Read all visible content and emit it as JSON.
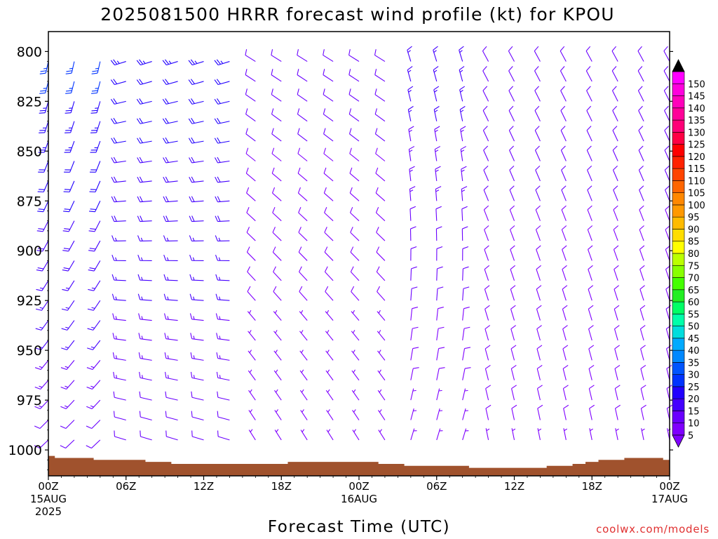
{
  "chart_data": {
    "type": "wind-barb time-height",
    "title": "2025081500 HRRR forecast wind profile (kt) for KPOU",
    "xlabel": "Forecast Time (UTC)",
    "ylabel": "",
    "credit": "coolwx.com/models",
    "x_range_hours": [
      0,
      48
    ],
    "y_range_hpa": [
      790,
      1013
    ],
    "y_ticks": [
      800,
      825,
      850,
      875,
      900,
      925,
      950,
      975,
      1000
    ],
    "x_ticks": [
      {
        "hour": 0,
        "labels": [
          "00Z",
          "15AUG",
          "2025"
        ]
      },
      {
        "hour": 6,
        "labels": [
          "06Z"
        ]
      },
      {
        "hour": 12,
        "labels": [
          "12Z"
        ]
      },
      {
        "hour": 18,
        "labels": [
          "18Z"
        ]
      },
      {
        "hour": 24,
        "labels": [
          "00Z",
          "16AUG"
        ]
      },
      {
        "hour": 30,
        "labels": [
          "06Z"
        ]
      },
      {
        "hour": 36,
        "labels": [
          "12Z"
        ]
      },
      {
        "hour": 42,
        "labels": [
          "18Z"
        ]
      },
      {
        "hour": 48,
        "labels": [
          "00Z",
          "17AUG"
        ]
      }
    ],
    "colorbar": {
      "labels": [
        5,
        10,
        15,
        20,
        25,
        30,
        35,
        40,
        45,
        50,
        55,
        60,
        65,
        70,
        75,
        80,
        85,
        90,
        95,
        100,
        105,
        110,
        115,
        120,
        125,
        130,
        135,
        140,
        145,
        150
      ],
      "colors": [
        "#7f00ff",
        "#6a00ff",
        "#4400ff",
        "#2200ff",
        "#0033ff",
        "#0055ff",
        "#0088ff",
        "#00aaff",
        "#00dddd",
        "#00ffaa",
        "#00ff66",
        "#22ee22",
        "#44ff00",
        "#88ff00",
        "#bbff00",
        "#ffff00",
        "#ffdd00",
        "#ffbb00",
        "#ff9900",
        "#ff8800",
        "#ff6600",
        "#ff4400",
        "#ff2200",
        "#ff0000",
        "#ff0044",
        "#ff0077",
        "#ff0099",
        "#ff00bb",
        "#ff00dd",
        "#ff00ff"
      ],
      "min_arrow_color": "#7f00ff",
      "max_arrow_color": "#000000"
    },
    "surface_pressure": {
      "hours": [
        0,
        1,
        2,
        3,
        4,
        5,
        6,
        7,
        8,
        9,
        10,
        11,
        12,
        13,
        14,
        15,
        16,
        17,
        18,
        19,
        20,
        21,
        22,
        23,
        24,
        25,
        26,
        27,
        28,
        29,
        30,
        31,
        32,
        33,
        34,
        35,
        36,
        37,
        38,
        39,
        40,
        41,
        42,
        43,
        44,
        45,
        46,
        47,
        48
      ],
      "hpa": [
        1003,
        1004,
        1004,
        1004,
        1005,
        1005,
        1005,
        1005,
        1006,
        1006,
        1007,
        1007,
        1007,
        1007,
        1007,
        1007,
        1007,
        1007,
        1007,
        1006,
        1006,
        1006,
        1006,
        1006,
        1006,
        1006,
        1007,
        1007,
        1008,
        1008,
        1008,
        1008,
        1008,
        1009,
        1009,
        1009,
        1009,
        1009,
        1009,
        1008,
        1008,
        1007,
        1006,
        1005,
        1005,
        1004,
        1004,
        1004,
        1005
      ],
      "color": "#a0522d"
    },
    "barb_grid": {
      "hours": [
        0,
        2,
        4,
        6,
        8,
        10,
        12,
        14,
        16,
        18,
        20,
        22,
        24,
        26,
        28,
        30,
        32,
        34,
        36,
        38,
        40,
        42,
        44,
        46,
        48
      ],
      "levels_hpa": [
        805,
        815,
        825,
        835,
        845,
        855,
        865,
        875,
        885,
        895,
        905,
        915,
        925,
        935,
        945,
        955,
        965,
        975,
        985,
        995
      ]
    },
    "wind_phases": [
      {
        "hours": [
          0,
          5
        ],
        "dir_deg": [
          190,
          230
        ],
        "speed_kt": [
          10,
          27
        ]
      },
      {
        "hours": [
          5,
          14
        ],
        "dir_deg": [
          250,
          290
        ],
        "speed_kt": [
          10,
          24
        ]
      },
      {
        "hours": [
          14,
          26
        ],
        "dir_deg": [
          300,
          330
        ],
        "speed_kt": [
          5,
          12
        ]
      },
      {
        "hours": [
          26,
          32
        ],
        "dir_deg": [
          340,
          20
        ],
        "speed_kt": [
          5,
          18
        ]
      },
      {
        "hours": [
          32,
          48
        ],
        "dir_deg": [
          330,
          350
        ],
        "speed_kt": [
          7,
          12
        ]
      }
    ]
  }
}
